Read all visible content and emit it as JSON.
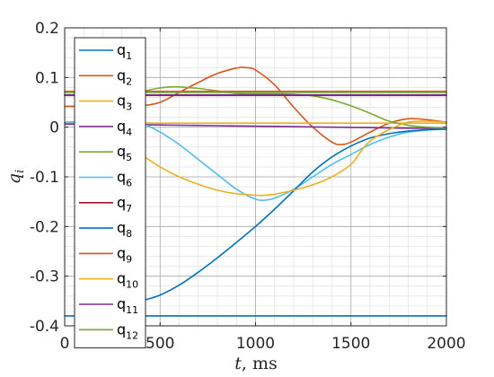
{
  "chart_data": {
    "type": "line",
    "xlabel_var": "t",
    "xlabel_unit": ", ms",
    "ylabel_var": "q",
    "ylabel_sub": "i",
    "xlim": [
      0,
      2000
    ],
    "ylim": [
      -0.4,
      0.2
    ],
    "xticks": [
      0,
      500,
      1000,
      1500,
      2000
    ],
    "xtick_labels": [
      "0",
      "500",
      "1000",
      "1500",
      "2000"
    ],
    "yticks": [
      0.2,
      0.1,
      0,
      -0.1,
      -0.2,
      -0.3,
      -0.4
    ],
    "ytick_labels": [
      "0.2",
      "0.1",
      "0",
      "-0.1",
      "-0.2",
      "-0.3",
      "-0.4"
    ],
    "grid": "major-and-minor",
    "legend_placement": "top-left",
    "series": [
      {
        "label": "q",
        "sub": "1",
        "color": "#0072BD",
        "x": [
          0,
          500,
          1000,
          1500,
          2000
        ],
        "y": [
          -0.38,
          -0.38,
          -0.38,
          -0.38,
          -0.38
        ]
      },
      {
        "label": "q",
        "sub": "2",
        "color": "#D95319",
        "x": [
          0,
          300,
          400,
          500,
          600,
          700,
          800,
          900,
          950,
          1000,
          1100,
          1200,
          1300,
          1400,
          1450,
          1500,
          1600,
          1700,
          1800,
          1900,
          2000
        ],
        "y": [
          0.042,
          0.042,
          0.043,
          0.05,
          0.07,
          0.09,
          0.108,
          0.119,
          0.12,
          0.115,
          0.085,
          0.04,
          0.0,
          -0.03,
          -0.035,
          -0.03,
          -0.01,
          0.008,
          0.017,
          0.015,
          0.01
        ]
      },
      {
        "label": "q",
        "sub": "3",
        "color": "#EDB120",
        "x": [
          0,
          500,
          1000,
          1500,
          2000
        ],
        "y": [
          0.008,
          0.008,
          0.008,
          0.008,
          0.008
        ]
      },
      {
        "label": "q",
        "sub": "4",
        "color": "#7E2F8E",
        "x": [
          0,
          200,
          400,
          600,
          800,
          1000,
          1200,
          1400,
          1600,
          1800,
          2000
        ],
        "y": [
          0.006,
          0.006,
          0.005,
          0.004,
          0.003,
          0.002,
          0.001,
          0.0,
          -0.001,
          -0.002,
          -0.002
        ]
      },
      {
        "label": "q",
        "sub": "5",
        "color": "#77AC30",
        "x": [
          0,
          300,
          400,
          500,
          550,
          600,
          700,
          800,
          900,
          1000,
          1100,
          1200,
          1300,
          1400,
          1500,
          1600,
          1700,
          1800,
          1900,
          2000
        ],
        "y": [
          0.065,
          0.066,
          0.072,
          0.079,
          0.081,
          0.081,
          0.078,
          0.073,
          0.068,
          0.067,
          0.067,
          0.066,
          0.063,
          0.055,
          0.043,
          0.028,
          0.012,
          0.004,
          0.0,
          -0.002
        ]
      },
      {
        "label": "q",
        "sub": "6",
        "color": "#4DBEEE",
        "x": [
          0,
          300,
          400,
          500,
          600,
          700,
          800,
          900,
          1000,
          1050,
          1100,
          1200,
          1300,
          1400,
          1500,
          1600,
          1700,
          1800,
          1900,
          2000
        ],
        "y": [
          0.01,
          0.012,
          0.008,
          -0.01,
          -0.035,
          -0.065,
          -0.095,
          -0.125,
          -0.145,
          -0.147,
          -0.143,
          -0.125,
          -0.1,
          -0.075,
          -0.055,
          -0.035,
          -0.02,
          -0.01,
          -0.006,
          -0.004
        ]
      },
      {
        "label": "q",
        "sub": "7",
        "color": "#A2142F",
        "x": [
          0,
          500,
          1000,
          1500,
          2000
        ],
        "y": [
          0.064,
          0.064,
          0.064,
          0.064,
          0.064
        ]
      },
      {
        "label": "q",
        "sub": "8",
        "color": "#0072BD",
        "x": [
          300,
          400,
          500,
          600,
          700,
          800,
          900,
          1000,
          1100,
          1200,
          1300,
          1400,
          1500,
          1600,
          1700,
          1800,
          1900,
          2000
        ],
        "y": [
          -0.36,
          -0.35,
          -0.338,
          -0.318,
          -0.292,
          -0.263,
          -0.232,
          -0.2,
          -0.165,
          -0.128,
          -0.09,
          -0.06,
          -0.038,
          -0.022,
          -0.013,
          -0.008,
          -0.005,
          -0.004
        ]
      },
      {
        "label": "q",
        "sub": "9",
        "color": "#D95319",
        "x": [
          0,
          500,
          1000,
          1500,
          2000
        ],
        "y": [
          0.072,
          0.072,
          0.072,
          0.072,
          0.072
        ]
      },
      {
        "label": "q",
        "sub": "10",
        "color": "#EDB120",
        "x": [
          300,
          400,
          500,
          600,
          700,
          800,
          900,
          1000,
          1050,
          1100,
          1200,
          1300,
          1400,
          1500,
          1550,
          1600,
          1700,
          1800,
          1900,
          2000
        ],
        "y": [
          -0.03,
          -0.055,
          -0.08,
          -0.1,
          -0.115,
          -0.127,
          -0.134,
          -0.137,
          -0.137,
          -0.135,
          -0.127,
          -0.116,
          -0.1,
          -0.075,
          -0.05,
          -0.028,
          -0.005,
          0.01,
          0.012,
          0.01
        ]
      },
      {
        "label": "q",
        "sub": "11",
        "color": "#7E2F8E",
        "x": [
          0,
          500,
          1000,
          1500,
          2000
        ],
        "y": [
          0.065,
          0.065,
          0.065,
          0.065,
          0.065
        ]
      },
      {
        "label": "q",
        "sub": "12",
        "color": "#77AC30",
        "x": [
          0,
          500,
          1000,
          1500,
          2000
        ],
        "y": [
          0.07,
          0.07,
          0.07,
          0.07,
          0.07
        ]
      }
    ]
  }
}
